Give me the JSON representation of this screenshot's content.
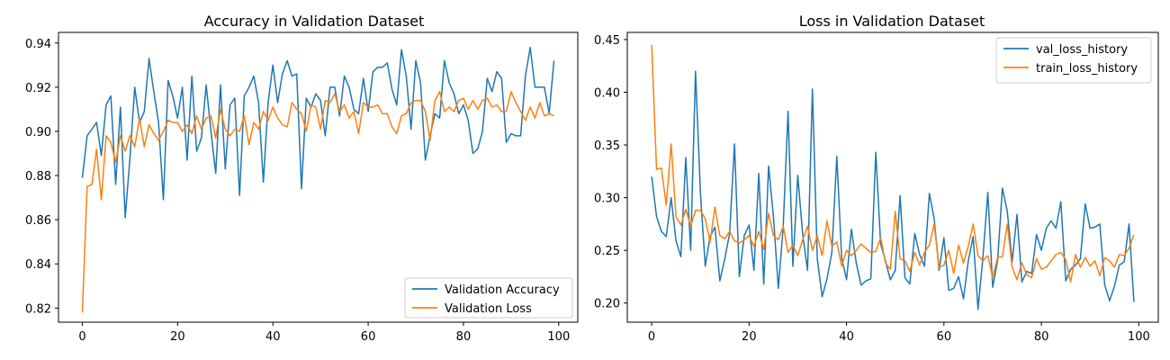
{
  "chart_data": [
    {
      "type": "line",
      "title": "Accuracy in Validation Dataset",
      "xlabel": "",
      "ylabel": "",
      "xlim": [
        -5,
        104
      ],
      "ylim": [
        0.8136,
        0.9448
      ],
      "xticks": [
        0,
        20,
        40,
        60,
        80,
        100
      ],
      "yticks": [
        0.82,
        0.84,
        0.86,
        0.88,
        0.9,
        0.92,
        0.94
      ],
      "ytick_labels": [
        "0.82",
        "0.84",
        "0.86",
        "0.88",
        "0.90",
        "0.92",
        "0.94"
      ],
      "legend": "lower right",
      "grid": false,
      "series": [
        {
          "name": "Validation Accuracy",
          "color": "#1f77b4",
          "x": [
            0,
            1,
            2,
            3,
            4,
            5,
            6,
            7,
            8,
            9,
            10,
            11,
            12,
            13,
            14,
            15,
            16,
            17,
            18,
            19,
            20,
            21,
            22,
            23,
            24,
            25,
            26,
            27,
            28,
            29,
            30,
            31,
            32,
            33,
            34,
            35,
            36,
            37,
            38,
            39,
            40,
            41,
            42,
            43,
            44,
            45,
            46,
            47,
            48,
            49,
            50,
            51,
            52,
            53,
            54,
            55,
            56,
            57,
            58,
            59,
            60,
            61,
            62,
            63,
            64,
            65,
            66,
            67,
            68,
            69,
            70,
            71,
            72,
            73,
            74,
            75,
            76,
            77,
            78,
            79,
            80,
            81,
            82,
            83,
            84,
            85,
            86,
            87,
            88,
            89,
            90,
            91,
            92,
            93,
            94,
            95,
            96,
            97,
            98,
            99
          ],
          "values": [
            0.879,
            0.898,
            0.901,
            0.904,
            0.889,
            0.912,
            0.916,
            0.876,
            0.911,
            0.861,
            0.888,
            0.92,
            0.904,
            0.909,
            0.933,
            0.918,
            0.904,
            0.869,
            0.923,
            0.916,
            0.906,
            0.92,
            0.887,
            0.925,
            0.891,
            0.897,
            0.921,
            0.9,
            0.881,
            0.921,
            0.883,
            0.912,
            0.915,
            0.871,
            0.916,
            0.92,
            0.925,
            0.913,
            0.877,
            0.913,
            0.93,
            0.913,
            0.926,
            0.932,
            0.925,
            0.926,
            0.874,
            0.915,
            0.911,
            0.917,
            0.914,
            0.898,
            0.92,
            0.92,
            0.907,
            0.925,
            0.92,
            0.91,
            0.908,
            0.924,
            0.909,
            0.927,
            0.929,
            0.929,
            0.931,
            0.919,
            0.912,
            0.937,
            0.925,
            0.901,
            0.932,
            0.922,
            0.887,
            0.898,
            0.908,
            0.906,
            0.932,
            0.922,
            0.917,
            0.908,
            0.912,
            0.905,
            0.89,
            0.892,
            0.9,
            0.924,
            0.918,
            0.927,
            0.924,
            0.895,
            0.899,
            0.898,
            0.898,
            0.925,
            0.938,
            0.92,
            0.92,
            0.92,
            0.908,
            0.932
          ]
        },
        {
          "name": "Validation Loss",
          "color": "#ff7f0e",
          "x": [
            0,
            1,
            2,
            3,
            4,
            5,
            6,
            7,
            8,
            9,
            10,
            11,
            12,
            13,
            14,
            15,
            16,
            17,
            18,
            19,
            20,
            21,
            22,
            23,
            24,
            25,
            26,
            27,
            28,
            29,
            30,
            31,
            32,
            33,
            34,
            35,
            36,
            37,
            38,
            39,
            40,
            41,
            42,
            43,
            44,
            45,
            46,
            47,
            48,
            49,
            50,
            51,
            52,
            53,
            54,
            55,
            56,
            57,
            58,
            59,
            60,
            61,
            62,
            63,
            64,
            65,
            66,
            67,
            68,
            69,
            70,
            71,
            72,
            73,
            74,
            75,
            76,
            77,
            78,
            79,
            80,
            81,
            82,
            83,
            84,
            85,
            86,
            87,
            88,
            89,
            90,
            91,
            92,
            93,
            94,
            95,
            96,
            97,
            98,
            99
          ],
          "values": [
            0.818,
            0.875,
            0.876,
            0.892,
            0.869,
            0.898,
            0.895,
            0.886,
            0.898,
            0.891,
            0.898,
            0.893,
            0.906,
            0.893,
            0.903,
            0.899,
            0.896,
            0.9,
            0.905,
            0.904,
            0.904,
            0.9,
            0.903,
            0.899,
            0.907,
            0.901,
            0.906,
            0.907,
            0.897,
            0.91,
            0.901,
            0.898,
            0.901,
            0.9,
            0.907,
            0.894,
            0.904,
            0.901,
            0.909,
            0.905,
            0.911,
            0.906,
            0.903,
            0.902,
            0.913,
            0.91,
            0.908,
            0.9,
            0.912,
            0.911,
            0.901,
            0.914,
            0.913,
            0.917,
            0.909,
            0.912,
            0.906,
            0.909,
            0.899,
            0.913,
            0.911,
            0.911,
            0.912,
            0.908,
            0.908,
            0.902,
            0.899,
            0.907,
            0.908,
            0.913,
            0.914,
            0.914,
            0.909,
            0.896,
            0.914,
            0.918,
            0.909,
            0.911,
            0.909,
            0.914,
            0.915,
            0.91,
            0.914,
            0.91,
            0.914,
            0.915,
            0.911,
            0.912,
            0.909,
            0.909,
            0.918,
            0.913,
            0.909,
            0.905,
            0.911,
            0.906,
            0.913,
            0.907,
            0.908,
            0.907
          ]
        }
      ]
    },
    {
      "type": "line",
      "title": "Loss in Validation Dataset",
      "xlabel": "",
      "ylabel": "",
      "xlim": [
        -5,
        104
      ],
      "ylim": [
        0.1818,
        0.4568
      ],
      "xticks": [
        0,
        20,
        40,
        60,
        80,
        100
      ],
      "yticks": [
        0.2,
        0.25,
        0.3,
        0.35,
        0.4,
        0.45
      ],
      "ytick_labels": [
        "0.20",
        "0.25",
        "0.30",
        "0.35",
        "0.40",
        "0.45"
      ],
      "legend": "upper right",
      "grid": false,
      "series": [
        {
          "name": "val_loss_history",
          "color": "#1f77b4",
          "x": [
            0,
            1,
            2,
            3,
            4,
            5,
            6,
            7,
            8,
            9,
            10,
            11,
            12,
            13,
            14,
            15,
            16,
            17,
            18,
            19,
            20,
            21,
            22,
            23,
            24,
            25,
            26,
            27,
            28,
            29,
            30,
            31,
            32,
            33,
            34,
            35,
            36,
            37,
            38,
            39,
            40,
            41,
            42,
            43,
            44,
            45,
            46,
            47,
            48,
            49,
            50,
            51,
            52,
            53,
            54,
            55,
            56,
            57,
            58,
            59,
            60,
            61,
            62,
            63,
            64,
            65,
            66,
            67,
            68,
            69,
            70,
            71,
            72,
            73,
            74,
            75,
            76,
            77,
            78,
            79,
            80,
            81,
            82,
            83,
            84,
            85,
            86,
            87,
            88,
            89,
            90,
            91,
            92,
            93,
            94,
            95,
            96,
            97,
            98,
            99
          ],
          "values": [
            0.32,
            0.282,
            0.268,
            0.263,
            0.3,
            0.259,
            0.244,
            0.338,
            0.25,
            0.42,
            0.305,
            0.235,
            0.263,
            0.272,
            0.221,
            0.242,
            0.266,
            0.351,
            0.225,
            0.264,
            0.274,
            0.231,
            0.323,
            0.218,
            0.33,
            0.282,
            0.214,
            0.272,
            0.382,
            0.235,
            0.321,
            0.265,
            0.231,
            0.403,
            0.242,
            0.206,
            0.223,
            0.248,
            0.339,
            0.243,
            0.222,
            0.27,
            0.238,
            0.217,
            0.221,
            0.223,
            0.343,
            0.256,
            0.24,
            0.222,
            0.231,
            0.302,
            0.224,
            0.218,
            0.266,
            0.246,
            0.235,
            0.304,
            0.28,
            0.231,
            0.262,
            0.212,
            0.214,
            0.225,
            0.204,
            0.24,
            0.263,
            0.194,
            0.243,
            0.305,
            0.215,
            0.24,
            0.309,
            0.287,
            0.239,
            0.284,
            0.22,
            0.23,
            0.228,
            0.265,
            0.25,
            0.271,
            0.278,
            0.271,
            0.296,
            0.221,
            0.232,
            0.236,
            0.242,
            0.294,
            0.271,
            0.272,
            0.275,
            0.217,
            0.202,
            0.216,
            0.236,
            0.239,
            0.275,
            0.201
          ]
        },
        {
          "name": "train_loss_history",
          "color": "#ff7f0e",
          "x": [
            0,
            1,
            2,
            3,
            4,
            5,
            6,
            7,
            8,
            9,
            10,
            11,
            12,
            13,
            14,
            15,
            16,
            17,
            18,
            19,
            20,
            21,
            22,
            23,
            24,
            25,
            26,
            27,
            28,
            29,
            30,
            31,
            32,
            33,
            34,
            35,
            36,
            37,
            38,
            39,
            40,
            41,
            42,
            43,
            44,
            45,
            46,
            47,
            48,
            49,
            50,
            51,
            52,
            53,
            54,
            55,
            56,
            57,
            58,
            59,
            60,
            61,
            62,
            63,
            64,
            65,
            66,
            67,
            68,
            69,
            70,
            71,
            72,
            73,
            74,
            75,
            76,
            77,
            78,
            79,
            80,
            81,
            82,
            83,
            84,
            85,
            86,
            87,
            88,
            89,
            90,
            91,
            92,
            93,
            94,
            95,
            96,
            97,
            98,
            99
          ],
          "values": [
            0.445,
            0.327,
            0.328,
            0.293,
            0.351,
            0.282,
            0.274,
            0.289,
            0.273,
            0.288,
            0.288,
            0.28,
            0.258,
            0.291,
            0.264,
            0.261,
            0.268,
            0.259,
            0.257,
            0.26,
            0.264,
            0.254,
            0.268,
            0.251,
            0.285,
            0.264,
            0.26,
            0.273,
            0.248,
            0.255,
            0.245,
            0.26,
            0.273,
            0.25,
            0.264,
            0.245,
            0.278,
            0.254,
            0.258,
            0.235,
            0.25,
            0.245,
            0.25,
            0.256,
            0.252,
            0.248,
            0.249,
            0.262,
            0.238,
            0.232,
            0.287,
            0.242,
            0.24,
            0.23,
            0.248,
            0.236,
            0.248,
            0.255,
            0.275,
            0.234,
            0.236,
            0.25,
            0.228,
            0.255,
            0.238,
            0.254,
            0.275,
            0.245,
            0.24,
            0.245,
            0.224,
            0.243,
            0.244,
            0.275,
            0.234,
            0.222,
            0.238,
            0.227,
            0.224,
            0.242,
            0.232,
            0.234,
            0.24,
            0.246,
            0.248,
            0.241,
            0.22,
            0.246,
            0.234,
            0.243,
            0.235,
            0.24,
            0.226,
            0.243,
            0.24,
            0.234,
            0.246,
            0.245,
            0.252,
            0.265
          ]
        }
      ]
    }
  ]
}
